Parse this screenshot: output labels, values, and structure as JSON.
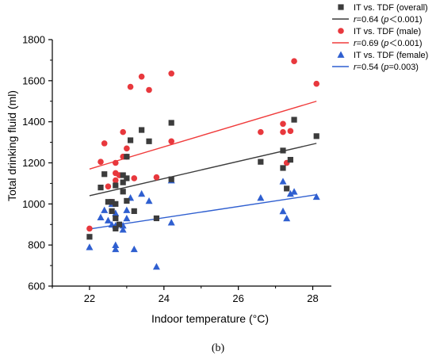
{
  "chart_data": {
    "type": "scatter",
    "xlabel": "Indoor temperature (°C)",
    "ylabel": "Total drinking fluid (ml)",
    "xlim": [
      21,
      28.5
    ],
    "ylim": [
      600,
      1800
    ],
    "xticks": [
      22,
      24,
      26,
      28
    ],
    "yticks": [
      600,
      800,
      1000,
      1200,
      1400,
      1600,
      1800
    ],
    "grid": false,
    "legend_position": "top-right",
    "caption": "(b)",
    "series": [
      {
        "name": "IT vs. TDF (overall)",
        "marker": "square",
        "color": "#3c3c3c",
        "points": [
          [
            22.0,
            840
          ],
          [
            22.3,
            1080
          ],
          [
            22.4,
            1145
          ],
          [
            22.5,
            1010
          ],
          [
            22.6,
            1010
          ],
          [
            22.6,
            965
          ],
          [
            22.7,
            1000
          ],
          [
            22.7,
            930
          ],
          [
            22.7,
            880
          ],
          [
            22.7,
            1090
          ],
          [
            22.8,
            900
          ],
          [
            22.9,
            1140
          ],
          [
            22.9,
            1105
          ],
          [
            22.9,
            1060
          ],
          [
            23.0,
            1230
          ],
          [
            23.0,
            1125
          ],
          [
            23.0,
            1015
          ],
          [
            23.1,
            1310
          ],
          [
            23.2,
            965
          ],
          [
            23.4,
            1360
          ],
          [
            23.6,
            1305
          ],
          [
            23.8,
            930
          ],
          [
            24.2,
            1395
          ],
          [
            24.2,
            1120
          ],
          [
            26.6,
            1205
          ],
          [
            27.2,
            1260
          ],
          [
            27.2,
            1175
          ],
          [
            27.3,
            1075
          ],
          [
            27.4,
            1215
          ],
          [
            27.5,
            1410
          ],
          [
            28.1,
            1330
          ]
        ],
        "fit_label": "r=0.64 (p＜0.001)",
        "fit_line": [
          [
            22.0,
            1040
          ],
          [
            28.1,
            1295
          ]
        ],
        "fit_color": "#3c3c3c"
      },
      {
        "name": "IT vs. TDF (male)",
        "marker": "circle",
        "color": "#e8383d",
        "points": [
          [
            22.0,
            880
          ],
          [
            22.3,
            1205
          ],
          [
            22.4,
            1295
          ],
          [
            22.5,
            1085
          ],
          [
            22.6,
            1010
          ],
          [
            22.7,
            1200
          ],
          [
            22.7,
            1150
          ],
          [
            22.7,
            1115
          ],
          [
            22.8,
            1140
          ],
          [
            22.9,
            1350
          ],
          [
            22.9,
            1230
          ],
          [
            23.0,
            1270
          ],
          [
            23.0,
            1230
          ],
          [
            23.1,
            1570
          ],
          [
            23.2,
            1125
          ],
          [
            23.4,
            1620
          ],
          [
            23.6,
            1555
          ],
          [
            23.8,
            1130
          ],
          [
            24.2,
            1635
          ],
          [
            24.2,
            1305
          ],
          [
            26.6,
            1350
          ],
          [
            27.2,
            1390
          ],
          [
            27.2,
            1350
          ],
          [
            27.3,
            1200
          ],
          [
            27.4,
            1355
          ],
          [
            27.5,
            1695
          ],
          [
            28.1,
            1585
          ]
        ],
        "fit_label": "r=0.69 (p＜0.001)",
        "fit_line": [
          [
            22.0,
            1170
          ],
          [
            28.1,
            1500
          ]
        ],
        "fit_color": "#f03b3b"
      },
      {
        "name": "IT vs. TDF (female)",
        "marker": "triangle",
        "color": "#2f5fd0",
        "points": [
          [
            22.0,
            790
          ],
          [
            22.3,
            935
          ],
          [
            22.4,
            970
          ],
          [
            22.5,
            920
          ],
          [
            22.6,
            1000
          ],
          [
            22.6,
            900
          ],
          [
            22.7,
            955
          ],
          [
            22.7,
            895
          ],
          [
            22.7,
            800
          ],
          [
            22.7,
            780
          ],
          [
            22.9,
            895
          ],
          [
            22.9,
            875
          ],
          [
            23.0,
            970
          ],
          [
            23.0,
            930
          ],
          [
            23.1,
            1030
          ],
          [
            23.2,
            780
          ],
          [
            23.4,
            1050
          ],
          [
            23.6,
            1015
          ],
          [
            23.8,
            695
          ],
          [
            24.2,
            1115
          ],
          [
            24.2,
            910
          ],
          [
            26.6,
            1030
          ],
          [
            27.2,
            1110
          ],
          [
            27.2,
            965
          ],
          [
            27.3,
            930
          ],
          [
            27.4,
            1050
          ],
          [
            27.5,
            1060
          ],
          [
            28.1,
            1035
          ]
        ],
        "fit_label": "r=0.54 (p=0.003)",
        "fit_line": [
          [
            22.0,
            878
          ],
          [
            28.1,
            1045
          ]
        ],
        "fit_color": "#2f5fd0"
      }
    ]
  }
}
